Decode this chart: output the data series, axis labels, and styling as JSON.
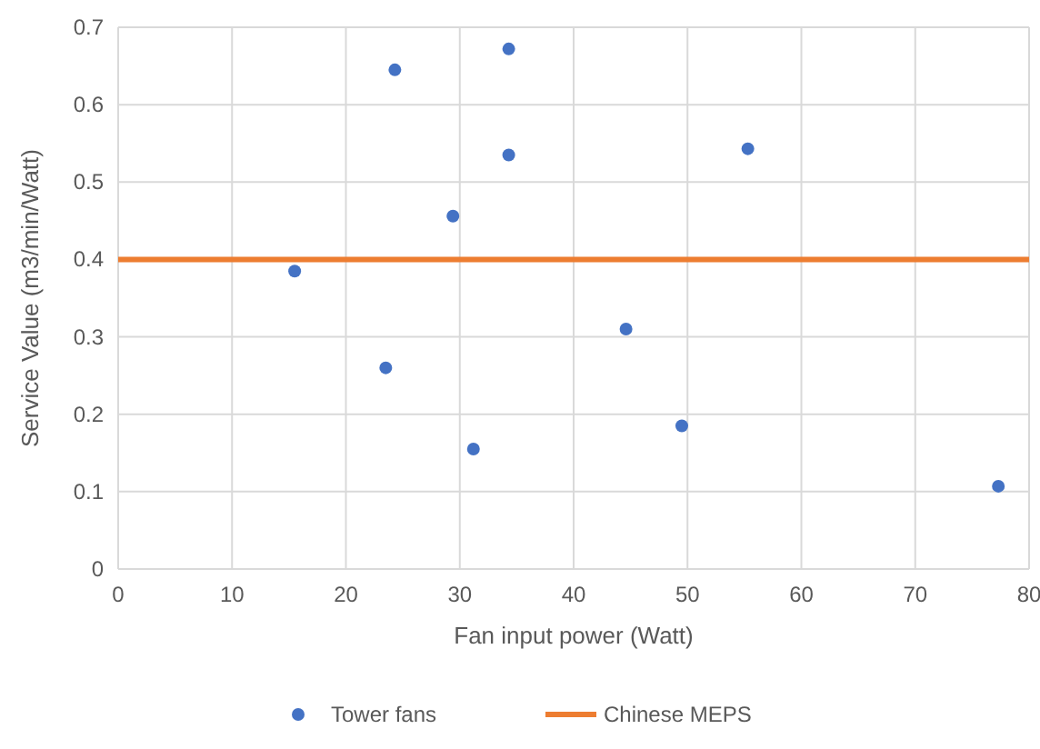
{
  "chart_data": {
    "type": "scatter",
    "xlabel": "Fan input power (Watt)",
    "ylabel": "Service Value (m3/min/Watt)",
    "xlim": [
      0,
      80
    ],
    "xticks": [
      0,
      10,
      20,
      30,
      40,
      50,
      60,
      70,
      80
    ],
    "ylim": [
      0,
      0.7
    ],
    "yticks": [
      0,
      0.1,
      0.2,
      0.3,
      0.4,
      0.5,
      0.6,
      0.7
    ],
    "grid": true,
    "legend": "bottom",
    "series": [
      {
        "name": "Tower fans",
        "color": "#4472c4",
        "marker": "circle",
        "x": [
          15.5,
          24.3,
          34.3,
          34.3,
          29.4,
          23.5,
          31.2,
          44.6,
          49.5,
          55.3,
          77.3
        ],
        "values": [
          0.385,
          0.645,
          0.672,
          0.535,
          0.456,
          0.26,
          0.155,
          0.31,
          0.185,
          0.543,
          0.107
        ]
      },
      {
        "name": "Chinese MEPS",
        "type": "line",
        "color": "#ed7d31",
        "marker": "none",
        "x": [
          0,
          80
        ],
        "values": [
          0.4,
          0.4
        ]
      }
    ]
  }
}
